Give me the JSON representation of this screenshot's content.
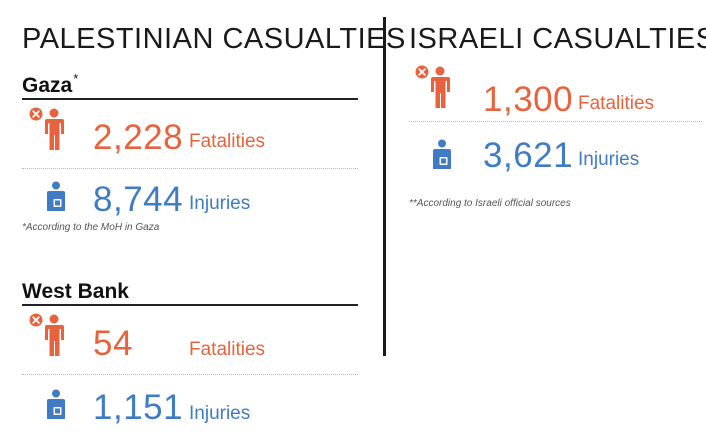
{
  "colors": {
    "fatality": "#e8633d",
    "injury": "#3f7cc4",
    "text": "#1a1a1a"
  },
  "palestinian": {
    "title": "PALESTINIAN CASUALTIES",
    "gaza": {
      "title": "Gaza",
      "marker": "*",
      "fatalities": {
        "value": "2,228",
        "label": "Fatalities",
        "icon": "person-cross-icon"
      },
      "injuries": {
        "value": "8,744",
        "label": "Injuries",
        "icon": "person-bandage-icon"
      },
      "note": "*According to the MoH in Gaza"
    },
    "west_bank": {
      "title": "West Bank",
      "fatalities": {
        "value": "54",
        "label": "Fatalities",
        "icon": "person-cross-icon"
      },
      "injuries": {
        "value": "1,151",
        "label": "Injuries",
        "icon": "person-bandage-icon"
      }
    }
  },
  "israeli": {
    "title": "ISRAELI CASUALTIES",
    "marker": "**",
    "fatalities": {
      "value": "1,300",
      "label": "Fatalities",
      "icon": "person-cross-icon"
    },
    "injuries": {
      "value": "3,621",
      "label": "Injuries",
      "icon": "person-bandage-icon"
    },
    "note": "**According to Israeli official sources"
  }
}
